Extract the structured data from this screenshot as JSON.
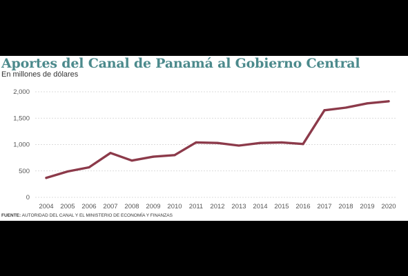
{
  "chart_data": {
    "type": "line",
    "title": "Aportes del Canal de Panamá al Gobierno Central",
    "subtitle": "En millones de dólares",
    "x": [
      "2004",
      "2005",
      "2006",
      "2007",
      "2008",
      "2009",
      "2010",
      "2011",
      "2012",
      "2013",
      "2014",
      "2015",
      "2016",
      "2017",
      "2018",
      "2019",
      "2020"
    ],
    "series": [
      {
        "values": [
          368,
          490,
          568,
          840,
          697,
          770,
          800,
          1040,
          1030,
          981,
          1030,
          1040,
          1010,
          1650,
          1700,
          1780,
          1820
        ]
      }
    ],
    "y_ticks": [
      0,
      500,
      1000,
      1500,
      2000
    ],
    "y_tick_labels": [
      "0",
      "500",
      "1,000",
      "1,500",
      "2,000"
    ],
    "ylim": [
      0,
      2000
    ],
    "grid": true,
    "color": "#8c3a4a"
  },
  "source": {
    "label": "FUENTE:",
    "text": " AUTORIDAD DEL CANAL Y EL MINISTERIO DE ECONOMÍA Y FINANZAS"
  }
}
